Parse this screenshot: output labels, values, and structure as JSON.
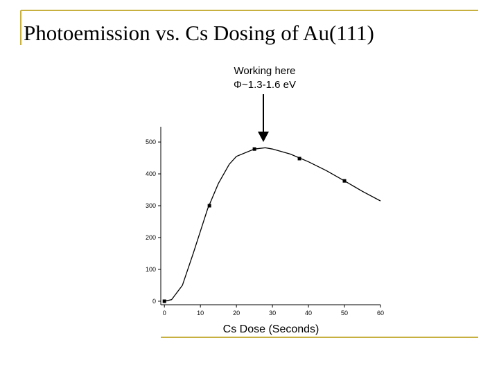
{
  "title": "Photoemission vs. Cs Dosing of Au(111)",
  "chart_data": {
    "type": "scatter",
    "annotations": [
      "Working here",
      "Φ~1.3-1.6 eV"
    ],
    "x_label": "Cs Dose (Seconds)",
    "xlim": [
      -1,
      60
    ],
    "xticks": [
      0,
      10,
      20,
      30,
      40,
      50,
      60
    ],
    "ylim": [
      -11,
      548
    ],
    "yticks": [
      0,
      100,
      200,
      300,
      400,
      500
    ],
    "series": [
      {
        "type": "scatter",
        "color": "#000000",
        "x": [
          0,
          12.5,
          25,
          37.5,
          50
        ],
        "values": [
          0,
          300,
          478,
          448,
          378
        ]
      },
      {
        "type": "line",
        "color": "#000000",
        "x": [
          0,
          2,
          5,
          8,
          10,
          12,
          15,
          18,
          20,
          25,
          28,
          30,
          35,
          40,
          45,
          50,
          55,
          60
        ],
        "values": [
          0,
          5,
          50,
          150,
          220,
          290,
          370,
          430,
          455,
          478,
          482,
          478,
          462,
          438,
          410,
          378,
          345,
          315
        ]
      }
    ]
  }
}
